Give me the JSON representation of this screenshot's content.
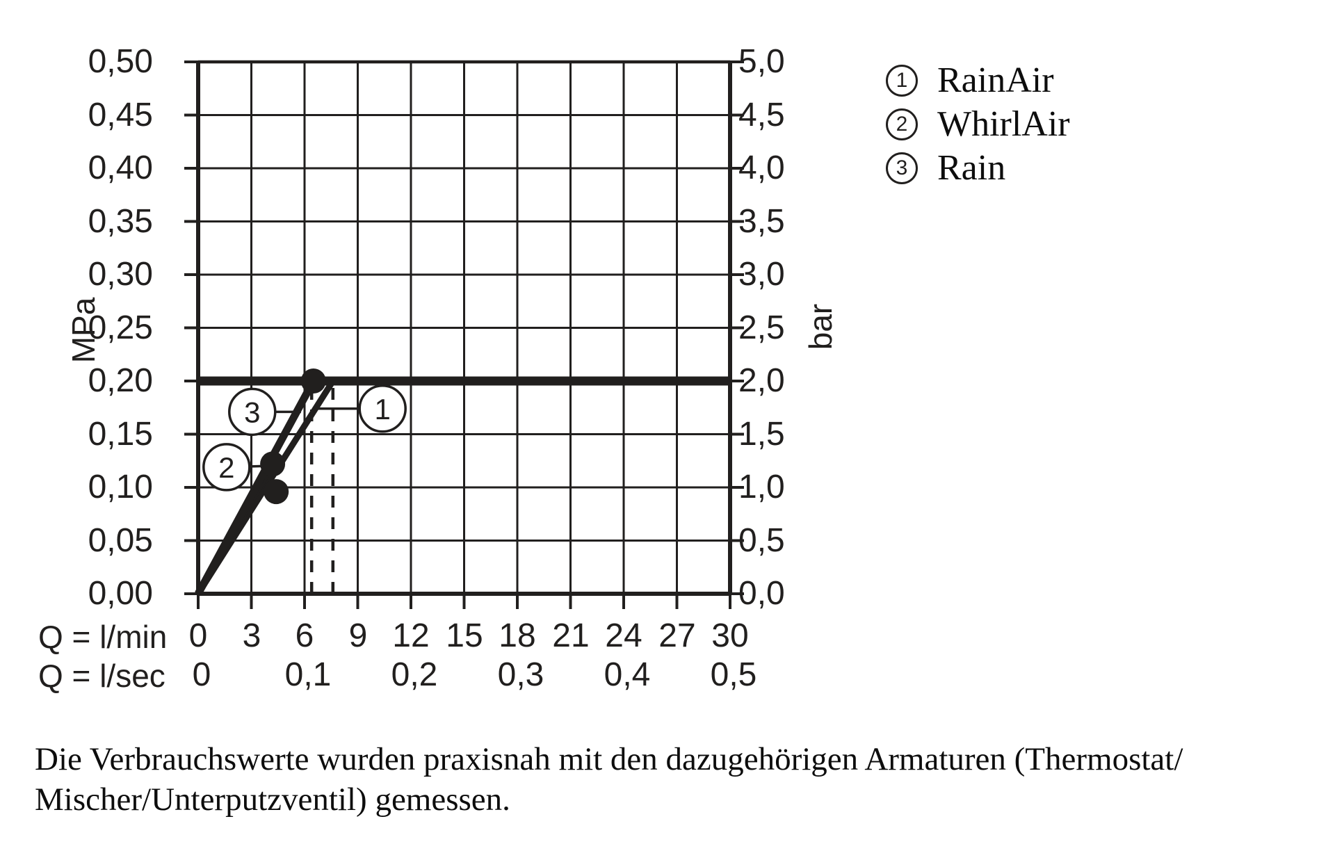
{
  "page": {
    "background": "#ffffff",
    "ink_color": "#211f1e"
  },
  "chart_data": {
    "type": "line",
    "title": "",
    "grid": true,
    "x_axis": {
      "label_lmin": "Q = l/min",
      "label_lsec": "Q = l/sec",
      "range_lmin": [
        0,
        30
      ],
      "range_lsec": [
        0,
        0.5
      ],
      "ticks_lmin": [
        "0",
        "3",
        "6",
        "9",
        "12",
        "15",
        "18",
        "21",
        "24",
        "27",
        "30"
      ],
      "ticks_lsec": [
        "0",
        "0,1",
        "0,2",
        "0,3",
        "0,4",
        "0,5"
      ]
    },
    "y_axis_left": {
      "label": "MPa",
      "range": [
        0,
        0.5
      ],
      "ticks": [
        "0,50",
        "0,45",
        "0,40",
        "0,35",
        "0,30",
        "0,25",
        "0,20",
        "0,15",
        "0,10",
        "0,05",
        "0,00"
      ]
    },
    "y_axis_right": {
      "label": "bar",
      "range": [
        0,
        5
      ],
      "ticks": [
        "5,0",
        "4,5",
        "4,0",
        "3,5",
        "3,0",
        "2,5",
        "2,0",
        "1,5",
        "1,0",
        "0,5",
        "0,0"
      ]
    },
    "reference_line": {
      "mpa": 0.2,
      "bar": 2.0,
      "stroke_width": 13
    },
    "dashed_guides_lmin": [
      6.4,
      7.6
    ],
    "series": [
      {
        "num": "1",
        "name": "RainAir",
        "points_lmin_mpa": [
          [
            0,
            0
          ],
          [
            7.6,
            0.2
          ]
        ],
        "stroke_width": 9,
        "end_dot": false
      },
      {
        "num": "2",
        "name": "WhirlAir",
        "points_lmin_mpa": [
          [
            0,
            0
          ],
          [
            4.2,
            0.122
          ]
        ],
        "stroke_width": 9,
        "end_dot": true
      },
      {
        "num": "3",
        "name": "Rain",
        "points_lmin_mpa": [
          [
            0,
            0
          ],
          [
            6.5,
            0.2
          ]
        ],
        "stroke_width": 11,
        "end_dot": true
      }
    ],
    "extra_dots": [
      {
        "lmin": 4.4,
        "mpa": 0.096
      }
    ],
    "dot_radius": 18,
    "callouts": [
      {
        "num": "1",
        "cx_lmin": 10.4,
        "cy_mpa": 0.174,
        "tx_lmin": 6.55,
        "ty_mpa": 0.174
      },
      {
        "num": "2",
        "cx_lmin": 1.6,
        "cy_mpa": 0.119,
        "tx_lmin": 3.65,
        "ty_mpa": 0.12
      },
      {
        "num": "3",
        "cx_lmin": 3.05,
        "cy_mpa": 0.171,
        "tx_lmin": 5.8,
        "ty_mpa": 0.171
      }
    ]
  },
  "legend": {
    "items": [
      {
        "num": "1",
        "label": "RainAir"
      },
      {
        "num": "2",
        "label": "WhirlAir"
      },
      {
        "num": "3",
        "label": "Rain"
      }
    ]
  },
  "caption": {
    "line1": "Die Verbrauchswerte wurden praxisnah mit den dazugehörigen Armaturen (Thermostat/",
    "line2": "Mischer/Unterputzventil) gemessen."
  }
}
